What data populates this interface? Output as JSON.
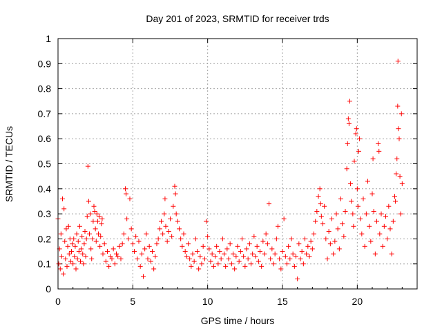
{
  "chart_data": {
    "type": "scatter",
    "title": "Day 201 of 2023, SRMTID for receiver trds",
    "xlabel": "GPS time / hours",
    "ylabel": "SRMTID / TECUs",
    "xlim": [
      0,
      24
    ],
    "ylim": [
      0,
      1
    ],
    "x_ticks": [
      0,
      5,
      10,
      15,
      20
    ],
    "x_tick_labels": [
      "0",
      "5",
      "10",
      "15",
      "20"
    ],
    "y_ticks": [
      0,
      0.1,
      0.2,
      0.3,
      0.4,
      0.5,
      0.6,
      0.7,
      0.8,
      0.9,
      1
    ],
    "y_tick_labels": [
      "0",
      "0.1",
      "0.2",
      "0.3",
      "0.4",
      "0.5",
      "0.6",
      "0.7",
      "0.8",
      "0.9",
      "1"
    ],
    "grid": true,
    "marker": "+",
    "color": "#ff0000",
    "series": [
      {
        "name": "SRMTID",
        "points": [
          [
            0.0,
            0.28
          ],
          [
            0.05,
            0.1
          ],
          [
            0.1,
            0.16
          ],
          [
            0.15,
            0.08
          ],
          [
            0.2,
            0.22
          ],
          [
            0.25,
            0.13
          ],
          [
            0.3,
            0.36
          ],
          [
            0.35,
            0.06
          ],
          [
            0.4,
            0.32
          ],
          [
            0.45,
            0.19
          ],
          [
            0.5,
            0.12
          ],
          [
            0.55,
            0.24
          ],
          [
            0.6,
            0.09
          ],
          [
            0.65,
            0.17
          ],
          [
            0.7,
            0.25
          ],
          [
            0.75,
            0.14
          ],
          [
            0.8,
            0.2
          ],
          [
            0.85,
            0.11
          ],
          [
            0.9,
            0.15
          ],
          [
            0.95,
            0.18
          ],
          [
            1.0,
            0.1
          ],
          [
            1.05,
            0.2
          ],
          [
            1.1,
            0.13
          ],
          [
            1.15,
            0.17
          ],
          [
            1.2,
            0.08
          ],
          [
            1.25,
            0.22
          ],
          [
            1.3,
            0.12
          ],
          [
            1.35,
            0.19
          ],
          [
            1.4,
            0.15
          ],
          [
            1.45,
            0.25
          ],
          [
            1.5,
            0.11
          ],
          [
            1.55,
            0.16
          ],
          [
            1.6,
            0.21
          ],
          [
            1.65,
            0.14
          ],
          [
            1.7,
            0.1
          ],
          [
            1.75,
            0.18
          ],
          [
            1.8,
            0.23
          ],
          [
            1.85,
            0.13
          ],
          [
            1.9,
            0.2
          ],
          [
            1.95,
            0.29
          ],
          [
            2.0,
            0.49
          ],
          [
            2.05,
            0.35
          ],
          [
            2.1,
            0.22
          ],
          [
            2.15,
            0.3
          ],
          [
            2.2,
            0.16
          ],
          [
            2.25,
            0.12
          ],
          [
            2.3,
            0.2
          ],
          [
            2.35,
            0.27
          ],
          [
            2.4,
            0.33
          ],
          [
            2.45,
            0.31
          ],
          [
            2.5,
            0.24
          ],
          [
            2.55,
            0.19
          ],
          [
            2.6,
            0.3
          ],
          [
            2.65,
            0.27
          ],
          [
            2.7,
            0.22
          ],
          [
            2.75,
            0.29
          ],
          [
            2.8,
            0.17
          ],
          [
            2.85,
            0.21
          ],
          [
            2.9,
            0.26
          ],
          [
            2.95,
            0.28
          ],
          [
            3.0,
            0.14
          ],
          [
            3.1,
            0.18
          ],
          [
            3.2,
            0.11
          ],
          [
            3.3,
            0.15
          ],
          [
            3.4,
            0.09
          ],
          [
            3.5,
            0.13
          ],
          [
            3.6,
            0.12
          ],
          [
            3.7,
            0.16
          ],
          [
            3.8,
            0.1
          ],
          [
            3.9,
            0.14
          ],
          [
            4.0,
            0.13
          ],
          [
            4.1,
            0.17
          ],
          [
            4.2,
            0.12
          ],
          [
            4.3,
            0.18
          ],
          [
            4.4,
            0.22
          ],
          [
            4.5,
            0.4
          ],
          [
            4.55,
            0.38
          ],
          [
            4.6,
            0.28
          ],
          [
            4.7,
            0.2
          ],
          [
            4.8,
            0.36
          ],
          [
            4.9,
            0.24
          ],
          [
            5.0,
            0.18
          ],
          [
            5.1,
            0.15
          ],
          [
            5.2,
            0.21
          ],
          [
            5.3,
            0.12
          ],
          [
            5.4,
            0.19
          ],
          [
            5.5,
            0.09
          ],
          [
            5.6,
            0.14
          ],
          [
            5.7,
            0.05
          ],
          [
            5.8,
            0.16
          ],
          [
            5.9,
            0.22
          ],
          [
            6.0,
            0.12
          ],
          [
            6.1,
            0.17
          ],
          [
            6.2,
            0.11
          ],
          [
            6.3,
            0.15
          ],
          [
            6.4,
            0.08
          ],
          [
            6.5,
            0.13
          ],
          [
            6.6,
            0.18
          ],
          [
            6.7,
            0.2
          ],
          [
            6.8,
            0.24
          ],
          [
            6.9,
            0.27
          ],
          [
            7.0,
            0.22
          ],
          [
            7.1,
            0.3
          ],
          [
            7.15,
            0.36
          ],
          [
            7.2,
            0.25
          ],
          [
            7.3,
            0.19
          ],
          [
            7.4,
            0.23
          ],
          [
            7.5,
            0.28
          ],
          [
            7.6,
            0.21
          ],
          [
            7.7,
            0.33
          ],
          [
            7.8,
            0.41
          ],
          [
            7.85,
            0.38
          ],
          [
            7.9,
            0.3
          ],
          [
            8.0,
            0.27
          ],
          [
            8.1,
            0.24
          ],
          [
            8.2,
            0.2
          ],
          [
            8.3,
            0.17
          ],
          [
            8.4,
            0.22
          ],
          [
            8.5,
            0.15
          ],
          [
            8.6,
            0.13
          ],
          [
            8.7,
            0.18
          ],
          [
            8.8,
            0.12
          ],
          [
            8.9,
            0.09
          ],
          [
            9.0,
            0.14
          ],
          [
            9.1,
            0.11
          ],
          [
            9.2,
            0.2
          ],
          [
            9.3,
            0.15
          ],
          [
            9.4,
            0.08
          ],
          [
            9.5,
            0.13
          ],
          [
            9.6,
            0.1
          ],
          [
            9.7,
            0.17
          ],
          [
            9.8,
            0.12
          ],
          [
            9.9,
            0.27
          ],
          [
            10.0,
            0.21
          ],
          [
            10.1,
            0.16
          ],
          [
            10.2,
            0.11
          ],
          [
            10.3,
            0.14
          ],
          [
            10.4,
            0.09
          ],
          [
            10.5,
            0.13
          ],
          [
            10.6,
            0.17
          ],
          [
            10.7,
            0.1
          ],
          [
            10.8,
            0.15
          ],
          [
            10.9,
            0.12
          ],
          [
            11.0,
            0.2
          ],
          [
            11.1,
            0.14
          ],
          [
            11.2,
            0.09
          ],
          [
            11.3,
            0.16
          ],
          [
            11.4,
            0.12
          ],
          [
            11.5,
            0.18
          ],
          [
            11.6,
            0.1
          ],
          [
            11.7,
            0.14
          ],
          [
            11.8,
            0.08
          ],
          [
            11.9,
            0.13
          ],
          [
            12.0,
            0.17
          ],
          [
            12.1,
            0.11
          ],
          [
            12.2,
            0.15
          ],
          [
            12.3,
            0.2
          ],
          [
            12.4,
            0.13
          ],
          [
            12.5,
            0.09
          ],
          [
            12.6,
            0.16
          ],
          [
            12.7,
            0.12
          ],
          [
            12.8,
            0.18
          ],
          [
            12.9,
            0.1
          ],
          [
            13.0,
            0.14
          ],
          [
            13.1,
            0.21
          ],
          [
            13.2,
            0.13
          ],
          [
            13.3,
            0.17
          ],
          [
            13.4,
            0.11
          ],
          [
            13.5,
            0.15
          ],
          [
            13.6,
            0.09
          ],
          [
            13.7,
            0.19
          ],
          [
            13.8,
            0.14
          ],
          [
            13.9,
            0.22
          ],
          [
            14.0,
            0.18
          ],
          [
            14.1,
            0.34
          ],
          [
            14.2,
            0.12
          ],
          [
            14.3,
            0.16
          ],
          [
            14.4,
            0.1
          ],
          [
            14.5,
            0.14
          ],
          [
            14.6,
            0.2
          ],
          [
            14.7,
            0.25
          ],
          [
            14.8,
            0.12
          ],
          [
            14.9,
            0.08
          ],
          [
            15.0,
            0.15
          ],
          [
            15.1,
            0.28
          ],
          [
            15.2,
            0.13
          ],
          [
            15.3,
            0.1
          ],
          [
            15.4,
            0.17
          ],
          [
            15.5,
            0.12
          ],
          [
            15.6,
            0.2
          ],
          [
            15.7,
            0.14
          ],
          [
            15.8,
            0.09
          ],
          [
            15.9,
            0.13
          ],
          [
            16.0,
            0.04
          ],
          [
            16.1,
            0.18
          ],
          [
            16.2,
            0.12
          ],
          [
            16.3,
            0.15
          ],
          [
            16.4,
            0.1
          ],
          [
            16.5,
            0.2
          ],
          [
            16.6,
            0.14
          ],
          [
            16.7,
            0.17
          ],
          [
            16.8,
            0.13
          ],
          [
            16.9,
            0.19
          ],
          [
            17.0,
            0.16
          ],
          [
            17.1,
            0.22
          ],
          [
            17.2,
            0.27
          ],
          [
            17.3,
            0.31
          ],
          [
            17.4,
            0.37
          ],
          [
            17.5,
            0.4
          ],
          [
            17.55,
            0.34
          ],
          [
            17.6,
            0.29
          ],
          [
            17.7,
            0.26
          ],
          [
            17.8,
            0.33
          ],
          [
            17.9,
            0.2
          ],
          [
            18.0,
            0.12
          ],
          [
            18.1,
            0.23
          ],
          [
            18.2,
            0.18
          ],
          [
            18.3,
            0.28
          ],
          [
            18.4,
            0.14
          ],
          [
            18.5,
            0.19
          ],
          [
            18.6,
            0.3
          ],
          [
            18.7,
            0.24
          ],
          [
            18.8,
            0.16
          ],
          [
            18.9,
            0.36
          ],
          [
            19.0,
            0.26
          ],
          [
            19.1,
            0.21
          ],
          [
            19.2,
            0.31
          ],
          [
            19.3,
            0.48
          ],
          [
            19.35,
            0.58
          ],
          [
            19.4,
            0.68
          ],
          [
            19.45,
            0.66
          ],
          [
            19.5,
            0.75
          ],
          [
            19.55,
            0.42
          ],
          [
            19.6,
            0.35
          ],
          [
            19.7,
            0.3
          ],
          [
            19.75,
            0.25
          ],
          [
            19.8,
            0.51
          ],
          [
            19.9,
            0.62
          ],
          [
            19.95,
            0.64
          ],
          [
            20.0,
            0.4
          ],
          [
            20.05,
            0.33
          ],
          [
            20.1,
            0.55
          ],
          [
            20.15,
            0.6
          ],
          [
            20.2,
            0.28
          ],
          [
            20.3,
            0.22
          ],
          [
            20.4,
            0.36
          ],
          [
            20.5,
            0.17
          ],
          [
            20.6,
            0.3
          ],
          [
            20.7,
            0.43
          ],
          [
            20.8,
            0.25
          ],
          [
            20.9,
            0.19
          ],
          [
            21.0,
            0.38
          ],
          [
            21.05,
            0.52
          ],
          [
            21.1,
            0.31
          ],
          [
            21.2,
            0.14
          ],
          [
            21.3,
            0.27
          ],
          [
            21.4,
            0.58
          ],
          [
            21.45,
            0.55
          ],
          [
            21.5,
            0.22
          ],
          [
            21.6,
            0.3
          ],
          [
            21.7,
            0.17
          ],
          [
            21.8,
            0.25
          ],
          [
            21.9,
            0.29
          ],
          [
            22.0,
            0.2
          ],
          [
            22.1,
            0.33
          ],
          [
            22.2,
            0.24
          ],
          [
            22.3,
            0.14
          ],
          [
            22.4,
            0.27
          ],
          [
            22.5,
            0.37
          ],
          [
            22.55,
            0.35
          ],
          [
            22.6,
            0.46
          ],
          [
            22.65,
            0.52
          ],
          [
            22.7,
            0.73
          ],
          [
            22.72,
            0.91
          ],
          [
            22.75,
            0.64
          ],
          [
            22.8,
            0.6
          ],
          [
            22.85,
            0.45
          ],
          [
            22.9,
            0.3
          ],
          [
            22.95,
            0.7
          ],
          [
            23.0,
            0.42
          ]
        ]
      }
    ]
  }
}
